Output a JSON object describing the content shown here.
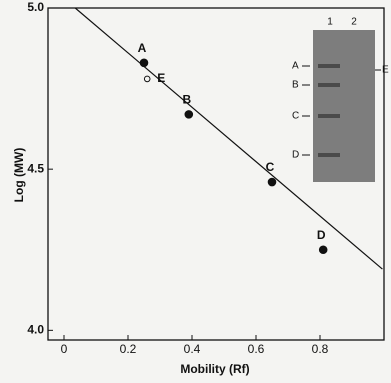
{
  "chart_data": {
    "type": "scatter",
    "x_label": "Mobility (Rf)",
    "y_label": "Log (MW)",
    "xlim": [
      -0.05,
      1.0
    ],
    "ylim": [
      3.97,
      5.0
    ],
    "xticks": [
      0,
      0.2,
      0.4,
      0.6,
      0.8
    ],
    "yticks": [
      {
        "value": 4,
        "label": "4.0"
      },
      4.5,
      {
        "value": 5,
        "label": "5.0"
      }
    ],
    "points": {
      "x": [
        0.25,
        0.26,
        0.39,
        0.65,
        0.81
      ],
      "values": [
        4.83,
        4.78,
        4.67,
        4.46,
        4.25
      ],
      "labels": [
        "A",
        "E",
        "B",
        "C",
        "D"
      ],
      "open": [
        false,
        true,
        false,
        false,
        false
      ],
      "color": "#111111"
    },
    "fit_line": {
      "x": [
        0.035,
        0.995
      ],
      "values": [
        5.0,
        4.19
      ],
      "color": "#111111"
    },
    "inset": {
      "lanes": [
        "1",
        "2"
      ],
      "band_labels": [
        "A",
        "B",
        "C",
        "D"
      ],
      "side_label": "E"
    }
  }
}
